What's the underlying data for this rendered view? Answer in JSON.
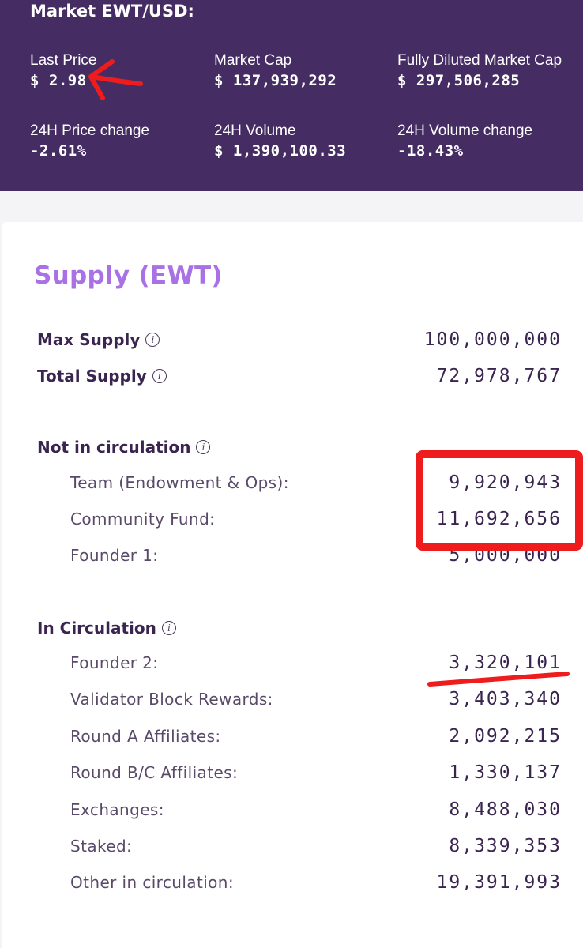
{
  "market": {
    "title": "Market EWT/USD:",
    "metrics": [
      {
        "label": "Last Price",
        "value": "$ 2.98"
      },
      {
        "label": "Market Cap",
        "value": "$ 137,939,292"
      },
      {
        "label": "Fully Diluted Market Cap",
        "value": "$ 297,506,285"
      },
      {
        "label": "24H Price change",
        "value": "-2.61%"
      },
      {
        "label": "24H Volume",
        "value": "$ 1,390,100.33"
      },
      {
        "label": "24H Volume change",
        "value": "-18.43%"
      }
    ]
  },
  "supply": {
    "title": "Supply (EWT)",
    "info_glyph": "i",
    "max": {
      "label": "Max Supply",
      "value": "100,000,000"
    },
    "total": {
      "label": "Total Supply",
      "value": "72,978,767"
    },
    "not_in_circulation": {
      "label": "Not in circulation",
      "items": [
        {
          "label": "Team (Endowment & Ops):",
          "value": "9,920,943"
        },
        {
          "label": "Community Fund:",
          "value": "11,692,656"
        },
        {
          "label": "Founder 1:",
          "value": "5,000,000"
        }
      ]
    },
    "in_circulation": {
      "label": "In Circulation",
      "items": [
        {
          "label": "Founder 2:",
          "value": "3,320,101"
        },
        {
          "label": "Validator Block Rewards:",
          "value": "3,403,340"
        },
        {
          "label": "Round A Affiliates:",
          "value": "2,092,215"
        },
        {
          "label": "Round B/C Affiliates:",
          "value": "1,330,137"
        },
        {
          "label": "Exchanges:",
          "value": "8,488,030"
        },
        {
          "label": "Staked:",
          "value": "8,339,353"
        },
        {
          "label": "Other in circulation:",
          "value": "19,391,993"
        }
      ]
    }
  },
  "colors": {
    "header_bg": "#452d63",
    "accent": "#a872e6",
    "annotation_red": "#ee1c1c"
  }
}
